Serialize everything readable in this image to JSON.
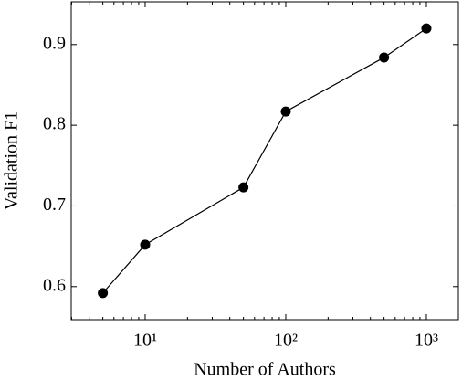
{
  "chart_data": {
    "type": "line",
    "x_label": "Number of Authors",
    "y_label": "Validation F1",
    "x": [
      5,
      10,
      50,
      100,
      500,
      1000
    ],
    "series": [
      {
        "name": "Validation F1",
        "color": "#000000",
        "values": [
          0.592,
          0.652,
          0.723,
          0.817,
          0.884,
          0.92
        ]
      }
    ],
    "log_x": true,
    "xlim": [
      2.98,
      1688
    ],
    "ylim": [
      0.559,
      0.953
    ],
    "xticks": [
      {
        "value": 10,
        "label": "10¹"
      },
      {
        "value": 100,
        "label": "10²"
      },
      {
        "value": 1000,
        "label": "10³"
      }
    ],
    "xminorticks": [
      3,
      4,
      5,
      6,
      7,
      8,
      9,
      20,
      30,
      40,
      50,
      60,
      70,
      80,
      90,
      200,
      300,
      400,
      500,
      600,
      700,
      800,
      900
    ],
    "yticks": [
      0.6,
      0.7,
      0.8,
      0.9
    ],
    "grid": false
  }
}
